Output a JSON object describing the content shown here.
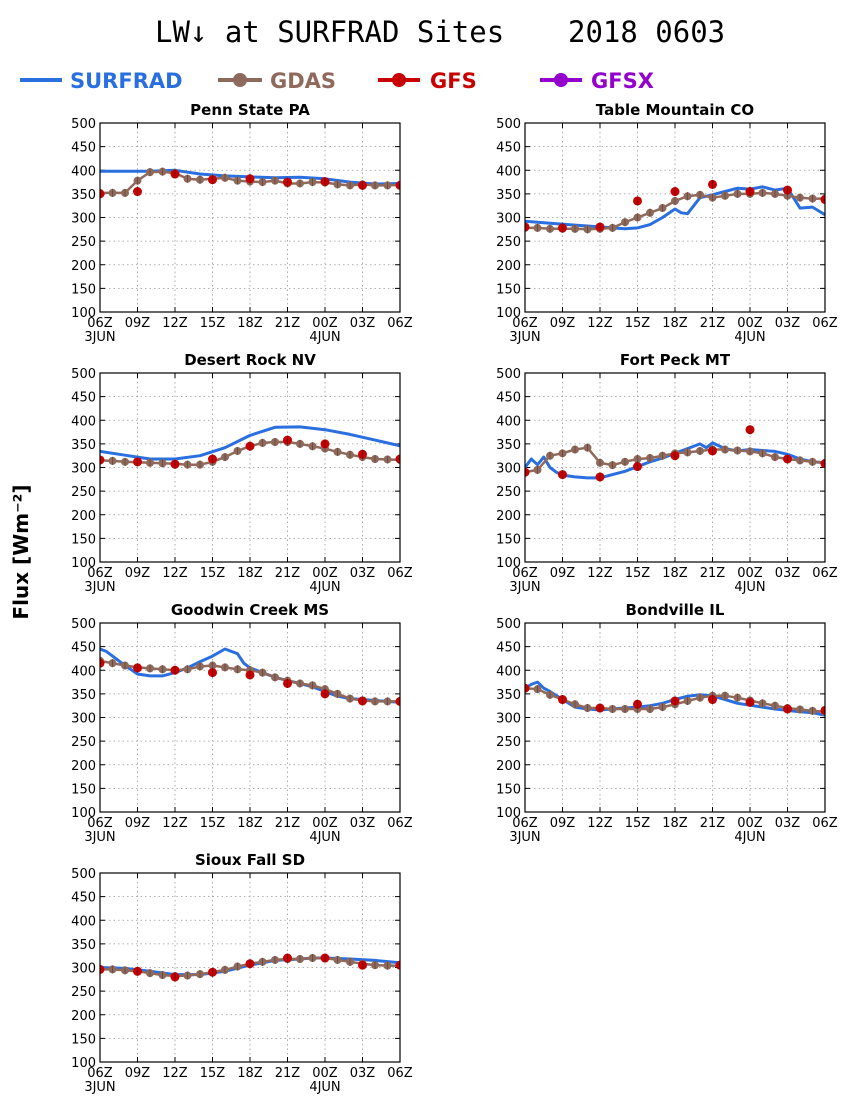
{
  "title": {
    "main": "LW↓ at SURFRAD Sites",
    "date": "2018 0603"
  },
  "ylabel": "Flux [Wm⁻²]",
  "legend": [
    {
      "name": "SURFRAD",
      "color": "#2a6fe0",
      "marker": false
    },
    {
      "name": "GDAS",
      "color": "#8f6a5c",
      "marker": true
    },
    {
      "name": "GFS",
      "color": "#c80000",
      "marker": true
    },
    {
      "name": "GFSX",
      "color": "#9400cc",
      "marker": true
    }
  ],
  "colors": {
    "surfrad": "#2a6fe0",
    "gdas": "#8f6a5c",
    "gdas_text": "#8f6a5c",
    "gfs": "#c80000",
    "gfsx": "#9400cc"
  },
  "chart_data": [
    {
      "type": "line",
      "title": "Penn State PA",
      "ylim": [
        100,
        500
      ],
      "yticks": [
        100,
        150,
        200,
        250,
        300,
        350,
        400,
        450,
        500
      ],
      "xlim": [
        0,
        24
      ],
      "xticks": [
        "06Z",
        "09Z",
        "12Z",
        "15Z",
        "18Z",
        "21Z",
        "00Z",
        "03Z",
        "06Z"
      ],
      "xday_labels": {
        "0": "3JUN",
        "6": "4JUN"
      },
      "series": [
        {
          "name": "SURFRAD",
          "x": [
            0,
            2,
            4,
            6,
            8,
            10,
            12,
            14,
            16,
            18,
            20,
            22,
            24
          ],
          "values": [
            398,
            398,
            398,
            400,
            392,
            388,
            386,
            384,
            385,
            382,
            375,
            371,
            372
          ]
        },
        {
          "name": "GDAS",
          "x": [
            0,
            1,
            2,
            3,
            4,
            5,
            6,
            7,
            8,
            9,
            10,
            11,
            12,
            13,
            14,
            15,
            16,
            17,
            18,
            19,
            20,
            21,
            22,
            23,
            24
          ],
          "values": [
            352,
            352,
            352,
            378,
            396,
            397,
            394,
            382,
            380,
            382,
            384,
            378,
            376,
            375,
            378,
            372,
            372,
            375,
            374,
            370,
            368,
            370,
            368,
            368,
            369
          ]
        },
        {
          "name": "GFS",
          "x": [
            0,
            3,
            6,
            9,
            12,
            15,
            18,
            21,
            24
          ],
          "values": [
            350,
            355,
            392,
            380,
            382,
            375,
            376,
            368,
            368
          ]
        }
      ]
    },
    {
      "type": "line",
      "title": "Table Mountain CO",
      "ylim": [
        100,
        500
      ],
      "yticks": [
        100,
        150,
        200,
        250,
        300,
        350,
        400,
        450,
        500
      ],
      "xlim": [
        0,
        24
      ],
      "xticks": [
        "06Z",
        "09Z",
        "12Z",
        "15Z",
        "18Z",
        "21Z",
        "00Z",
        "03Z",
        "06Z"
      ],
      "xday_labels": {
        "0": "3JUN",
        "6": "4JUN"
      },
      "series": [
        {
          "name": "SURFRAD",
          "x": [
            0,
            1,
            2,
            3,
            4,
            5,
            6,
            7,
            8,
            9,
            10,
            11,
            12,
            12.5,
            13,
            14,
            15,
            16,
            17,
            18,
            19,
            20,
            21,
            22,
            23,
            24
          ],
          "values": [
            292,
            290,
            288,
            286,
            284,
            282,
            280,
            278,
            276,
            278,
            285,
            300,
            318,
            310,
            308,
            342,
            348,
            355,
            362,
            360,
            365,
            358,
            362,
            320,
            322,
            306
          ]
        },
        {
          "name": "GDAS",
          "x": [
            0,
            1,
            2,
            3,
            4,
            5,
            6,
            7,
            8,
            9,
            10,
            11,
            12,
            13,
            14,
            15,
            16,
            17,
            18,
            19,
            20,
            21,
            22,
            23,
            24
          ],
          "values": [
            278,
            278,
            276,
            276,
            276,
            275,
            276,
            278,
            290,
            300,
            310,
            320,
            335,
            345,
            348,
            342,
            346,
            350,
            350,
            352,
            350,
            346,
            342,
            340,
            340
          ]
        },
        {
          "name": "GFS",
          "x": [
            0,
            3,
            6,
            9,
            12,
            15,
            18,
            21,
            24
          ],
          "values": [
            280,
            278,
            280,
            335,
            355,
            370,
            355,
            358,
            338
          ]
        }
      ]
    },
    {
      "type": "line",
      "title": "Desert Rock NV",
      "ylim": [
        100,
        500
      ],
      "yticks": [
        100,
        150,
        200,
        250,
        300,
        350,
        400,
        450,
        500
      ],
      "xlim": [
        0,
        24
      ],
      "xticks": [
        "06Z",
        "09Z",
        "12Z",
        "15Z",
        "18Z",
        "21Z",
        "00Z",
        "03Z",
        "06Z"
      ],
      "xday_labels": {
        "0": "3JUN",
        "6": "4JUN"
      },
      "series": [
        {
          "name": "SURFRAD",
          "x": [
            0,
            2,
            4,
            6,
            8,
            10,
            12,
            14,
            16,
            18,
            20,
            22,
            24
          ],
          "values": [
            334,
            326,
            318,
            318,
            325,
            342,
            368,
            385,
            386,
            380,
            370,
            358,
            346
          ]
        },
        {
          "name": "GDAS",
          "x": [
            0,
            1,
            2,
            3,
            4,
            5,
            6,
            7,
            8,
            9,
            10,
            11,
            12,
            13,
            14,
            15,
            16,
            17,
            18,
            19,
            20,
            21,
            22,
            23,
            24
          ],
          "values": [
            315,
            314,
            312,
            311,
            310,
            309,
            308,
            306,
            306,
            312,
            322,
            335,
            345,
            352,
            354,
            354,
            350,
            345,
            340,
            333,
            327,
            322,
            318,
            317,
            316
          ]
        },
        {
          "name": "GFS",
          "x": [
            0,
            3,
            6,
            9,
            12,
            15,
            18,
            21,
            24
          ],
          "values": [
            316,
            312,
            307,
            318,
            345,
            358,
            350,
            328,
            318
          ]
        }
      ]
    },
    {
      "type": "line",
      "title": "Fort Peck MT",
      "ylim": [
        100,
        500
      ],
      "yticks": [
        100,
        150,
        200,
        250,
        300,
        350,
        400,
        450,
        500
      ],
      "xlim": [
        0,
        24
      ],
      "xticks": [
        "06Z",
        "09Z",
        "12Z",
        "15Z",
        "18Z",
        "21Z",
        "00Z",
        "03Z",
        "06Z"
      ],
      "xday_labels": {
        "0": "3JUN",
        "6": "4JUN"
      },
      "series": [
        {
          "name": "SURFRAD",
          "x": [
            0,
            0.5,
            1,
            1.5,
            2,
            2.5,
            3,
            4,
            5,
            6,
            7,
            8,
            9,
            10,
            11,
            12,
            13,
            14,
            14.5,
            15,
            16,
            17,
            18,
            19,
            20,
            21,
            22,
            23,
            24
          ],
          "values": [
            300,
            318,
            306,
            322,
            300,
            290,
            284,
            280,
            278,
            278,
            285,
            292,
            302,
            312,
            320,
            330,
            340,
            350,
            342,
            352,
            340,
            335,
            338,
            336,
            334,
            328,
            318,
            312,
            310
          ]
        },
        {
          "name": "GDAS",
          "x": [
            0,
            1,
            2,
            3,
            4,
            5,
            6,
            7,
            8,
            9,
            10,
            11,
            12,
            13,
            14,
            15,
            16,
            17,
            18,
            19,
            20,
            21,
            22,
            23,
            24
          ],
          "values": [
            290,
            295,
            325,
            330,
            338,
            342,
            310,
            305,
            312,
            318,
            320,
            325,
            330,
            332,
            335,
            338,
            338,
            336,
            334,
            330,
            322,
            318,
            315,
            312,
            310
          ]
        },
        {
          "name": "GFS",
          "x": [
            0,
            3,
            6,
            9,
            12,
            15,
            18,
            21,
            24
          ],
          "values": [
            290,
            285,
            280,
            302,
            325,
            335,
            380,
            318,
            308
          ]
        }
      ]
    },
    {
      "type": "line",
      "title": "Goodwin Creek MS",
      "ylim": [
        100,
        500
      ],
      "yticks": [
        100,
        150,
        200,
        250,
        300,
        350,
        400,
        450,
        500
      ],
      "xlim": [
        0,
        24
      ],
      "xticks": [
        "06Z",
        "09Z",
        "12Z",
        "15Z",
        "18Z",
        "21Z",
        "00Z",
        "03Z",
        "06Z"
      ],
      "xday_labels": {
        "0": "3JUN",
        "6": "4JUN"
      },
      "series": [
        {
          "name": "SURFRAD",
          "x": [
            0,
            0.5,
            1,
            2,
            3,
            4,
            5,
            6,
            7,
            8,
            9,
            10,
            10.5,
            11,
            11.5,
            12,
            13,
            14,
            15,
            16,
            17,
            18,
            19,
            20,
            21,
            22,
            23,
            24
          ],
          "values": [
            445,
            440,
            430,
            410,
            392,
            388,
            388,
            395,
            405,
            418,
            430,
            445,
            440,
            435,
            415,
            405,
            395,
            385,
            378,
            372,
            365,
            355,
            345,
            340,
            338,
            336,
            334,
            332
          ]
        },
        {
          "name": "GDAS",
          "x": [
            0,
            1,
            2,
            3,
            4,
            5,
            6,
            7,
            8,
            9,
            10,
            11,
            12,
            13,
            14,
            15,
            16,
            17,
            18,
            19,
            20,
            21,
            22,
            23,
            24
          ],
          "values": [
            420,
            415,
            410,
            406,
            404,
            402,
            400,
            402,
            408,
            410,
            406,
            402,
            400,
            395,
            385,
            378,
            372,
            368,
            360,
            350,
            340,
            336,
            334,
            334,
            334
          ]
        },
        {
          "name": "GFS",
          "x": [
            0,
            3,
            6,
            9,
            12,
            15,
            18,
            21,
            24
          ],
          "values": [
            415,
            405,
            400,
            395,
            390,
            372,
            350,
            335,
            334
          ]
        }
      ]
    },
    {
      "type": "line",
      "title": "Bondville IL",
      "ylim": [
        100,
        500
      ],
      "yticks": [
        100,
        150,
        200,
        250,
        300,
        350,
        400,
        450,
        500
      ],
      "xlim": [
        0,
        24
      ],
      "xticks": [
        "06Z",
        "09Z",
        "12Z",
        "15Z",
        "18Z",
        "21Z",
        "00Z",
        "03Z",
        "06Z"
      ],
      "xday_labels": {
        "0": "3JUN",
        "6": "4JUN"
      },
      "series": [
        {
          "name": "SURFRAD",
          "x": [
            0,
            0.5,
            1,
            1.5,
            2,
            3,
            4,
            5,
            6,
            7,
            8,
            9,
            10,
            11,
            12,
            13,
            14,
            15,
            16,
            17,
            18,
            19,
            20,
            21,
            22,
            23,
            24
          ],
          "values": [
            362,
            370,
            375,
            362,
            355,
            338,
            322,
            318,
            316,
            318,
            320,
            322,
            325,
            330,
            338,
            345,
            348,
            346,
            338,
            330,
            326,
            322,
            318,
            315,
            312,
            310,
            305
          ]
        },
        {
          "name": "GDAS",
          "x": [
            0,
            1,
            2,
            3,
            4,
            5,
            6,
            7,
            8,
            9,
            10,
            11,
            12,
            13,
            14,
            15,
            16,
            17,
            18,
            19,
            20,
            21,
            22,
            23,
            24
          ],
          "values": [
            362,
            360,
            348,
            338,
            328,
            320,
            320,
            318,
            318,
            318,
            318,
            322,
            328,
            335,
            342,
            346,
            346,
            342,
            336,
            330,
            325,
            320,
            317,
            314,
            312
          ]
        },
        {
          "name": "GFS",
          "x": [
            0,
            3,
            6,
            9,
            12,
            15,
            18,
            21,
            24
          ],
          "values": [
            362,
            338,
            320,
            328,
            335,
            338,
            332,
            318,
            315
          ]
        }
      ]
    },
    {
      "type": "line",
      "title": "Sioux Fall SD",
      "ylim": [
        100,
        500
      ],
      "yticks": [
        100,
        150,
        200,
        250,
        300,
        350,
        400,
        450,
        500
      ],
      "xlim": [
        0,
        24
      ],
      "xticks": [
        "06Z",
        "09Z",
        "12Z",
        "15Z",
        "18Z",
        "21Z",
        "00Z",
        "03Z",
        "06Z"
      ],
      "xday_labels": {
        "0": "3JUN",
        "6": "4JUN"
      },
      "series": [
        {
          "name": "SURFRAD",
          "x": [
            0,
            2,
            4,
            6,
            8,
            10,
            12,
            14,
            16,
            17,
            18,
            20,
            22,
            24
          ],
          "values": [
            300,
            298,
            292,
            285,
            285,
            292,
            305,
            315,
            318,
            320,
            320,
            318,
            315,
            310
          ]
        },
        {
          "name": "GDAS",
          "x": [
            0,
            1,
            2,
            3,
            4,
            5,
            6,
            7,
            8,
            9,
            10,
            11,
            12,
            13,
            14,
            15,
            16,
            17,
            18,
            19,
            20,
            21,
            22,
            23,
            24
          ],
          "values": [
            296,
            296,
            294,
            292,
            288,
            284,
            282,
            283,
            286,
            290,
            295,
            302,
            308,
            312,
            316,
            318,
            318,
            320,
            320,
            316,
            312,
            308,
            305,
            304,
            304
          ]
        },
        {
          "name": "GFS",
          "x": [
            0,
            3,
            6,
            9,
            12,
            15,
            18,
            21,
            24
          ],
          "values": [
            296,
            292,
            280,
            290,
            308,
            320,
            320,
            305,
            305
          ]
        }
      ]
    }
  ]
}
